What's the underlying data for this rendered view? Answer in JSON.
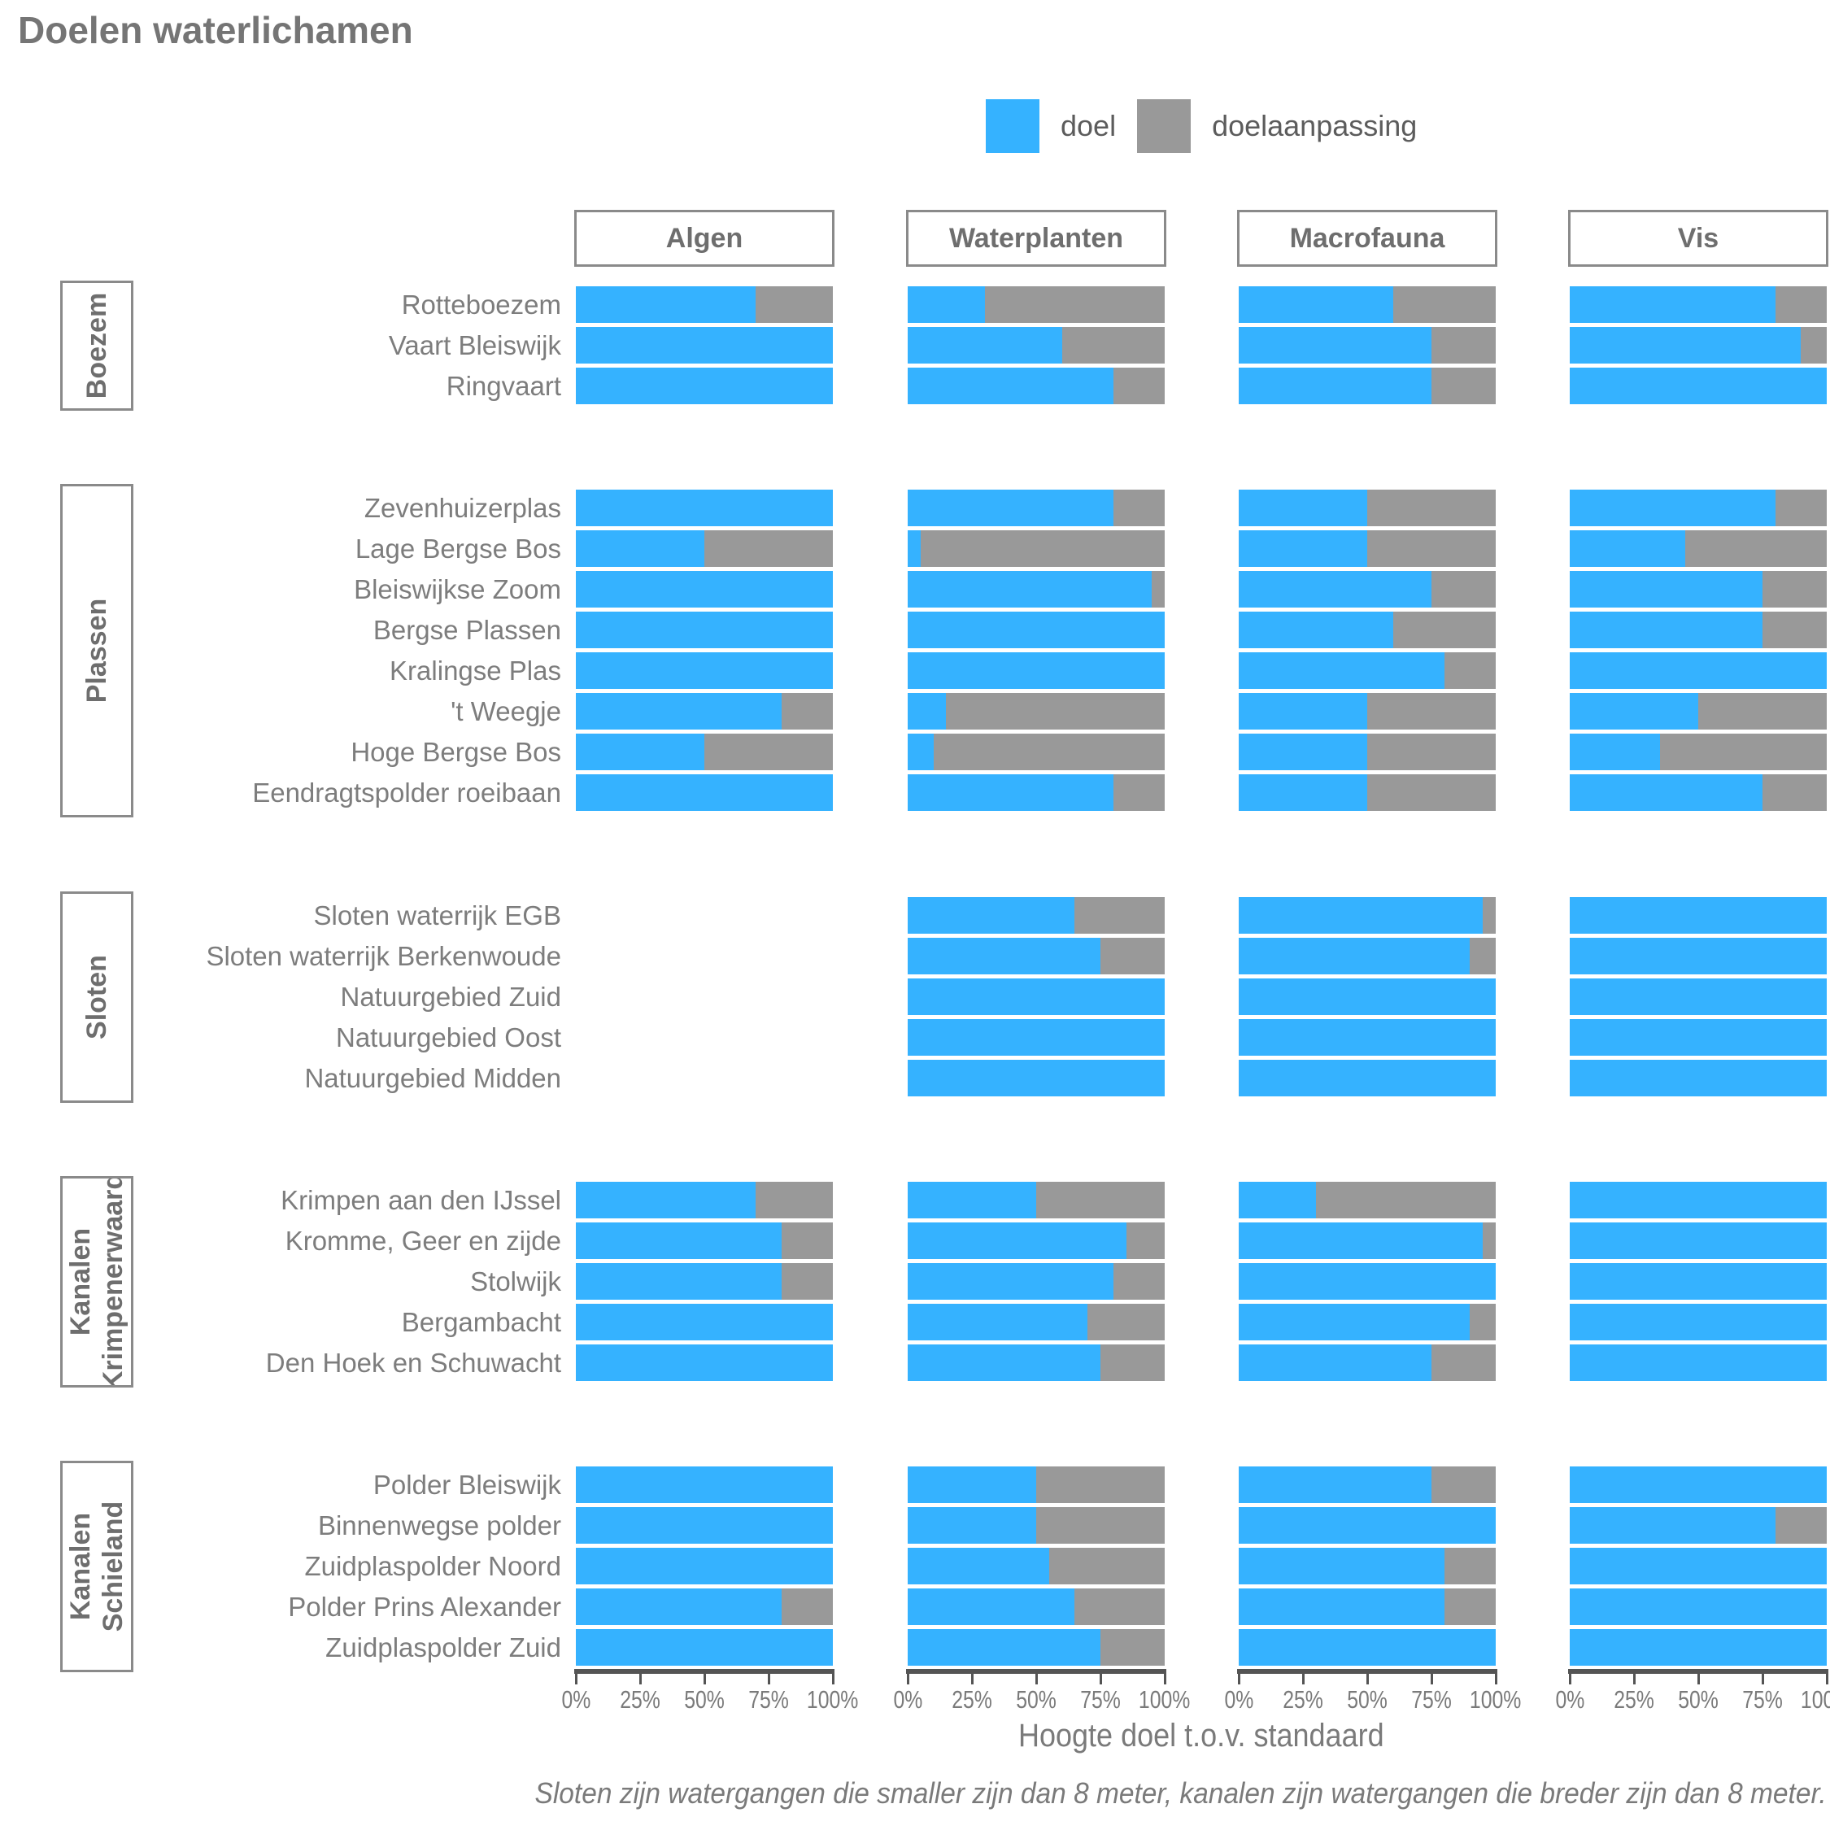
{
  "title": "Doelen waterlichamen",
  "legend": {
    "items": [
      {
        "label": "doel",
        "color": "#35B2FF"
      },
      {
        "label": "doelaanpassing",
        "color": "#999999"
      }
    ]
  },
  "caption": "Sloten zijn watergangen die smaller zijn dan 8 meter, kanalen zijn watergangen die breder zijn dan 8 meter.",
  "colors": {
    "doel": "#35B2FF",
    "doelaanpassing": "#999999",
    "axis_line": "#545454",
    "text_gray": "#7a7a7a",
    "border_gray": "#8a8a8a"
  },
  "chart_data": {
    "type": "bar",
    "orientation": "horizontal",
    "stacked": true,
    "unit": "percent",
    "xlim": [
      0,
      100
    ],
    "x_ticks": [
      "0%",
      "25%",
      "50%",
      "75%",
      "100%"
    ],
    "xlabel": "Hoogte doel t.o.v. standaard",
    "facets": [
      "Algen",
      "Waterplanten",
      "Macrofauna",
      "Vis"
    ],
    "series": [
      "doel",
      "doelaanpassing"
    ],
    "note": "Values are percentage 'doel'; 'doelaanpassing' fills the remainder to 100%. null = no bar shown.",
    "groups": [
      {
        "name": "Boezem",
        "label_lines": [
          "Boezem"
        ],
        "rows": [
          {
            "label": "Rotteboezem",
            "doel": {
              "Algen": 70,
              "Waterplanten": 30,
              "Macrofauna": 60,
              "Vis": 80
            }
          },
          {
            "label": "Vaart Bleiswijk",
            "doel": {
              "Algen": 100,
              "Waterplanten": 60,
              "Macrofauna": 75,
              "Vis": 90
            }
          },
          {
            "label": "Ringvaart",
            "doel": {
              "Algen": 100,
              "Waterplanten": 80,
              "Macrofauna": 75,
              "Vis": 100
            }
          }
        ]
      },
      {
        "name": "Plassen",
        "label_lines": [
          "Plassen"
        ],
        "rows": [
          {
            "label": "Zevenhuizerplas",
            "doel": {
              "Algen": 100,
              "Waterplanten": 80,
              "Macrofauna": 50,
              "Vis": 80
            }
          },
          {
            "label": "Lage Bergse Bos",
            "doel": {
              "Algen": 50,
              "Waterplanten": 5,
              "Macrofauna": 50,
              "Vis": 45
            }
          },
          {
            "label": "Bleiswijkse Zoom",
            "doel": {
              "Algen": 100,
              "Waterplanten": 95,
              "Macrofauna": 75,
              "Vis": 75
            }
          },
          {
            "label": "Bergse Plassen",
            "doel": {
              "Algen": 100,
              "Waterplanten": 100,
              "Macrofauna": 60,
              "Vis": 75
            }
          },
          {
            "label": "Kralingse Plas",
            "doel": {
              "Algen": 100,
              "Waterplanten": 100,
              "Macrofauna": 80,
              "Vis": 100
            }
          },
          {
            "label": "'t Weegje",
            "doel": {
              "Algen": 80,
              "Waterplanten": 15,
              "Macrofauna": 50,
              "Vis": 50
            }
          },
          {
            "label": "Hoge Bergse Bos",
            "doel": {
              "Algen": 50,
              "Waterplanten": 10,
              "Macrofauna": 50,
              "Vis": 35
            }
          },
          {
            "label": "Eendragtspolder roeibaan",
            "doel": {
              "Algen": 100,
              "Waterplanten": 80,
              "Macrofauna": 50,
              "Vis": 75
            }
          }
        ]
      },
      {
        "name": "Sloten",
        "label_lines": [
          "Sloten"
        ],
        "rows": [
          {
            "label": "Sloten waterrijk EGB",
            "doel": {
              "Algen": null,
              "Waterplanten": 65,
              "Macrofauna": 95,
              "Vis": 100
            }
          },
          {
            "label": "Sloten waterrijk Berkenwoude",
            "doel": {
              "Algen": null,
              "Waterplanten": 75,
              "Macrofauna": 90,
              "Vis": 100
            }
          },
          {
            "label": "Natuurgebied Zuid",
            "doel": {
              "Algen": null,
              "Waterplanten": 100,
              "Macrofauna": 100,
              "Vis": 100
            }
          },
          {
            "label": "Natuurgebied Oost",
            "doel": {
              "Algen": null,
              "Waterplanten": 100,
              "Macrofauna": 100,
              "Vis": 100
            }
          },
          {
            "label": "Natuurgebied Midden",
            "doel": {
              "Algen": null,
              "Waterplanten": 100,
              "Macrofauna": 100,
              "Vis": 100
            }
          }
        ]
      },
      {
        "name": "Kanalen Krimpenerwaard",
        "label_lines": [
          "Kanalen",
          "Krimpenerwaard"
        ],
        "rows": [
          {
            "label": "Krimpen aan den IJssel",
            "doel": {
              "Algen": 70,
              "Waterplanten": 50,
              "Macrofauna": 30,
              "Vis": 100
            }
          },
          {
            "label": "Kromme, Geer en zijde",
            "doel": {
              "Algen": 80,
              "Waterplanten": 85,
              "Macrofauna": 95,
              "Vis": 100
            }
          },
          {
            "label": "Stolwijk",
            "doel": {
              "Algen": 80,
              "Waterplanten": 80,
              "Macrofauna": 100,
              "Vis": 100
            }
          },
          {
            "label": "Bergambacht",
            "doel": {
              "Algen": 100,
              "Waterplanten": 70,
              "Macrofauna": 90,
              "Vis": 100
            }
          },
          {
            "label": "Den Hoek en Schuwacht",
            "doel": {
              "Algen": 100,
              "Waterplanten": 75,
              "Macrofauna": 75,
              "Vis": 100
            }
          }
        ]
      },
      {
        "name": "Kanalen Schieland",
        "label_lines": [
          "Kanalen",
          "Schieland"
        ],
        "rows": [
          {
            "label": "Polder Bleiswijk",
            "doel": {
              "Algen": 100,
              "Waterplanten": 50,
              "Macrofauna": 75,
              "Vis": 100
            }
          },
          {
            "label": "Binnenwegse polder",
            "doel": {
              "Algen": 100,
              "Waterplanten": 50,
              "Macrofauna": 100,
              "Vis": 80
            }
          },
          {
            "label": "Zuidplaspolder Noord",
            "doel": {
              "Algen": 100,
              "Waterplanten": 55,
              "Macrofauna": 80,
              "Vis": 100
            }
          },
          {
            "label": "Polder Prins Alexander",
            "doel": {
              "Algen": 80,
              "Waterplanten": 65,
              "Macrofauna": 80,
              "Vis": 100
            }
          },
          {
            "label": "Zuidplaspolder Zuid",
            "doel": {
              "Algen": 100,
              "Waterplanten": 75,
              "Macrofauna": 100,
              "Vis": 100
            }
          }
        ]
      }
    ]
  }
}
